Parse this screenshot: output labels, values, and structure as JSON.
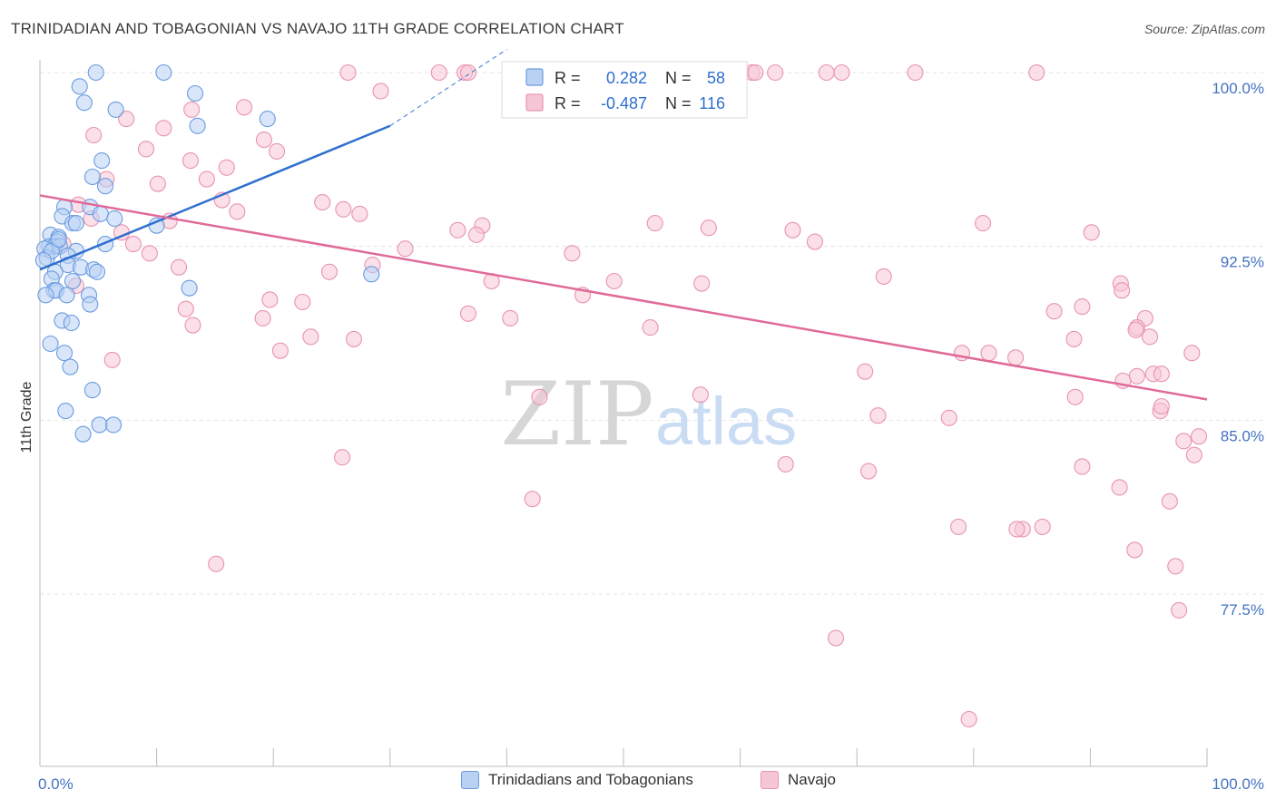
{
  "title": "TRINIDADIAN AND TOBAGONIAN VS NAVAJO 11TH GRADE CORRELATION CHART",
  "source": "Source: ZipAtlas.com",
  "watermark": {
    "zip": "ZIP",
    "atlas": "atlas"
  },
  "legend_top": [
    {
      "r_label": "R =",
      "r_value": "0.282",
      "n_label": "N =",
      "n_value": "58"
    },
    {
      "r_label": "R =",
      "r_value": "-0.487",
      "n_label": "N =",
      "n_value": "116"
    }
  ],
  "colors": {
    "blue": "#6a9be0",
    "blue_fill": "#b9d2f4",
    "blue_line": "#2f6fd0",
    "pink": "#e893b1",
    "pink_fill": "#f7c6d6",
    "pink_line": "#e06a98",
    "tick_text": "#4472c4",
    "grid": "#e3e3e3"
  },
  "chart_data": {
    "type": "scatter",
    "title": "TRINIDADIAN AND TOBAGONIAN VS NAVAJO 11TH GRADE CORRELATION CHART",
    "xlabel": "",
    "ylabel": "11th Grade",
    "xlim": [
      0,
      100
    ],
    "ylim": [
      69.5,
      101.5
    ],
    "x_tick_labels": [
      "0.0%",
      "100.0%"
    ],
    "y_ticks": [
      77.5,
      85.0,
      92.5,
      100.0
    ],
    "y_tick_labels": [
      "77.5%",
      "85.0%",
      "92.5%",
      "100.0%"
    ],
    "grid": true,
    "legend_placement": "bottom-center",
    "series": [
      {
        "name": "Trinidadians and Tobagonians",
        "R": 0.282,
        "N": 58,
        "trend": {
          "x": [
            0,
            30
          ],
          "y": [
            91.5,
            97.7
          ],
          "dashed_to": [
            40,
            101.0
          ]
        },
        "points": [
          [
            4.8,
            100.0
          ],
          [
            10.6,
            100.0
          ],
          [
            3.4,
            99.4
          ],
          [
            3.8,
            98.7
          ],
          [
            6.5,
            98.4
          ],
          [
            13.3,
            99.1
          ],
          [
            19.5,
            98.0
          ],
          [
            13.5,
            97.7
          ],
          [
            5.3,
            96.2
          ],
          [
            4.5,
            95.5
          ],
          [
            5.6,
            95.1
          ],
          [
            2.1,
            94.2
          ],
          [
            4.3,
            94.2
          ],
          [
            5.2,
            93.9
          ],
          [
            1.9,
            93.8
          ],
          [
            6.4,
            93.7
          ],
          [
            2.8,
            93.5
          ],
          [
            3.1,
            93.5
          ],
          [
            10.0,
            93.4
          ],
          [
            0.9,
            93.0
          ],
          [
            1.6,
            92.9
          ],
          [
            1.5,
            92.7
          ],
          [
            0.8,
            92.5
          ],
          [
            1.2,
            92.5
          ],
          [
            1.7,
            92.5
          ],
          [
            5.6,
            92.6
          ],
          [
            0.4,
            92.4
          ],
          [
            3.1,
            92.3
          ],
          [
            2.4,
            92.1
          ],
          [
            0.6,
            92.0
          ],
          [
            2.4,
            91.7
          ],
          [
            3.5,
            91.6
          ],
          [
            4.6,
            91.5
          ],
          [
            1.3,
            91.4
          ],
          [
            4.9,
            91.4
          ],
          [
            28.4,
            91.3
          ],
          [
            1.0,
            91.1
          ],
          [
            2.8,
            91.0
          ],
          [
            1.2,
            90.6
          ],
          [
            1.4,
            90.6
          ],
          [
            12.8,
            90.7
          ],
          [
            0.5,
            90.4
          ],
          [
            2.3,
            90.4
          ],
          [
            4.2,
            90.4
          ],
          [
            4.3,
            90.0
          ],
          [
            1.9,
            89.3
          ],
          [
            2.7,
            89.2
          ],
          [
            0.9,
            88.3
          ],
          [
            2.1,
            87.9
          ],
          [
            2.6,
            87.3
          ],
          [
            4.5,
            86.3
          ],
          [
            2.2,
            85.4
          ],
          [
            5.1,
            84.8
          ],
          [
            6.3,
            84.8
          ],
          [
            3.7,
            84.4
          ],
          [
            1.0,
            92.3
          ],
          [
            0.3,
            91.9
          ],
          [
            1.6,
            92.8
          ]
        ]
      },
      {
        "name": "Navajo",
        "R": -0.487,
        "N": 116,
        "trend": {
          "x": [
            0,
            100
          ],
          "y": [
            94.7,
            85.9
          ]
        },
        "points": [
          [
            26.4,
            100.0
          ],
          [
            34.2,
            100.0
          ],
          [
            36.4,
            100.0
          ],
          [
            36.7,
            100.0
          ],
          [
            52.0,
            100.0
          ],
          [
            60.1,
            100.0
          ],
          [
            61.0,
            100.0
          ],
          [
            61.3,
            100.0
          ],
          [
            63.0,
            100.0
          ],
          [
            67.4,
            100.0
          ],
          [
            68.7,
            100.0
          ],
          [
            75.0,
            100.0
          ],
          [
            85.4,
            100.0
          ],
          [
            29.2,
            99.2
          ],
          [
            17.5,
            98.5
          ],
          [
            13.0,
            98.4
          ],
          [
            7.4,
            98.0
          ],
          [
            10.6,
            97.6
          ],
          [
            4.6,
            97.3
          ],
          [
            19.2,
            97.1
          ],
          [
            9.1,
            96.7
          ],
          [
            20.3,
            96.6
          ],
          [
            12.9,
            96.2
          ],
          [
            16.0,
            95.9
          ],
          [
            5.7,
            95.4
          ],
          [
            14.3,
            95.4
          ],
          [
            10.1,
            95.2
          ],
          [
            15.6,
            94.5
          ],
          [
            24.2,
            94.4
          ],
          [
            3.3,
            94.3
          ],
          [
            26.0,
            94.1
          ],
          [
            16.9,
            94.0
          ],
          [
            27.4,
            93.9
          ],
          [
            4.4,
            93.7
          ],
          [
            11.1,
            93.6
          ],
          [
            52.7,
            93.5
          ],
          [
            80.8,
            93.5
          ],
          [
            35.8,
            93.2
          ],
          [
            37.9,
            93.4
          ],
          [
            64.5,
            93.2
          ],
          [
            90.1,
            93.1
          ],
          [
            7.0,
            93.1
          ],
          [
            37.4,
            93.0
          ],
          [
            2.0,
            92.6
          ],
          [
            8.0,
            92.6
          ],
          [
            31.3,
            92.4
          ],
          [
            45.6,
            92.2
          ],
          [
            11.9,
            91.6
          ],
          [
            28.5,
            91.7
          ],
          [
            24.8,
            91.4
          ],
          [
            72.3,
            91.2
          ],
          [
            38.7,
            91.0
          ],
          [
            49.2,
            91.0
          ],
          [
            56.7,
            90.9
          ],
          [
            92.6,
            90.9
          ],
          [
            3.1,
            90.8
          ],
          [
            92.7,
            90.6
          ],
          [
            46.5,
            90.4
          ],
          [
            19.7,
            90.2
          ],
          [
            22.5,
            90.1
          ],
          [
            89.3,
            89.9
          ],
          [
            12.5,
            89.8
          ],
          [
            86.9,
            89.7
          ],
          [
            36.7,
            89.6
          ],
          [
            40.3,
            89.4
          ],
          [
            19.1,
            89.4
          ],
          [
            94.7,
            89.4
          ],
          [
            13.1,
            89.1
          ],
          [
            94.0,
            89.0
          ],
          [
            52.3,
            89.0
          ],
          [
            93.9,
            88.9
          ],
          [
            95.1,
            88.6
          ],
          [
            23.2,
            88.6
          ],
          [
            26.9,
            88.5
          ],
          [
            88.6,
            88.5
          ],
          [
            20.6,
            88.0
          ],
          [
            79.0,
            87.9
          ],
          [
            81.3,
            87.9
          ],
          [
            98.7,
            87.9
          ],
          [
            83.6,
            87.7
          ],
          [
            6.2,
            87.6
          ],
          [
            70.7,
            87.1
          ],
          [
            94.0,
            86.9
          ],
          [
            95.4,
            87.0
          ],
          [
            96.1,
            87.0
          ],
          [
            92.8,
            86.7
          ],
          [
            56.6,
            86.1
          ],
          [
            42.8,
            86.0
          ],
          [
            88.7,
            86.0
          ],
          [
            96.0,
            85.4
          ],
          [
            71.8,
            85.2
          ],
          [
            77.9,
            85.1
          ],
          [
            96.1,
            85.6
          ],
          [
            99.3,
            84.3
          ],
          [
            98.0,
            84.1
          ],
          [
            98.9,
            83.5
          ],
          [
            25.9,
            83.4
          ],
          [
            63.9,
            83.1
          ],
          [
            89.3,
            83.0
          ],
          [
            71.0,
            82.8
          ],
          [
            92.5,
            82.1
          ],
          [
            42.2,
            81.6
          ],
          [
            96.8,
            81.5
          ],
          [
            85.9,
            80.4
          ],
          [
            78.7,
            80.4
          ],
          [
            84.2,
            80.3
          ],
          [
            83.7,
            80.3
          ],
          [
            93.8,
            79.4
          ],
          [
            15.1,
            78.8
          ],
          [
            97.3,
            78.7
          ],
          [
            97.6,
            76.8
          ],
          [
            68.2,
            75.6
          ],
          [
            79.6,
            72.1
          ],
          [
            9.4,
            92.2
          ],
          [
            57.3,
            93.3
          ],
          [
            66.4,
            92.7
          ]
        ]
      }
    ]
  }
}
